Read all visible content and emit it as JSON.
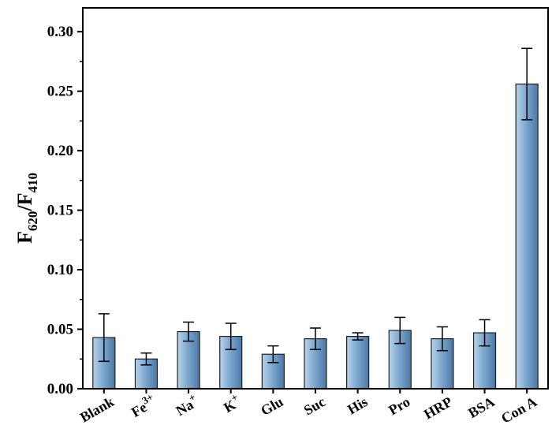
{
  "chart_data": {
    "type": "bar",
    "title": "",
    "xlabel": "",
    "ylabel": {
      "main1": "F",
      "sub1": "620",
      "sep": "/",
      "main2": "F",
      "sub2": "410"
    },
    "ylim": [
      0,
      0.32
    ],
    "yticks": [
      "0.00",
      "0.05",
      "0.10",
      "0.15",
      "0.20",
      "0.25",
      "0.30"
    ],
    "grid": false,
    "categories": [
      {
        "base": "Blank",
        "sup": ""
      },
      {
        "base": "Fe",
        "sup": "3+"
      },
      {
        "base": "Na",
        "sup": "+"
      },
      {
        "base": "K",
        "sup": "+"
      },
      {
        "base": "Glu",
        "sup": ""
      },
      {
        "base": "Suc",
        "sup": ""
      },
      {
        "base": "His",
        "sup": ""
      },
      {
        "base": "Pro",
        "sup": ""
      },
      {
        "base": "HRP",
        "sup": ""
      },
      {
        "base": "BSA",
        "sup": ""
      },
      {
        "base": "Con A",
        "sup": ""
      }
    ],
    "values": [
      0.043,
      0.025,
      0.048,
      0.044,
      0.029,
      0.042,
      0.044,
      0.049,
      0.042,
      0.047,
      0.256
    ],
    "errors": [
      0.02,
      0.005,
      0.008,
      0.011,
      0.007,
      0.009,
      0.003,
      0.011,
      0.01,
      0.011,
      0.03
    ],
    "colors": {
      "bar_fill_light": "#b9d3ea",
      "bar_fill_mid": "#7ea8cf",
      "bar_fill_dark": "#4a78a6",
      "bar_stroke": "#1f1f1f",
      "axis": "#000000"
    }
  }
}
